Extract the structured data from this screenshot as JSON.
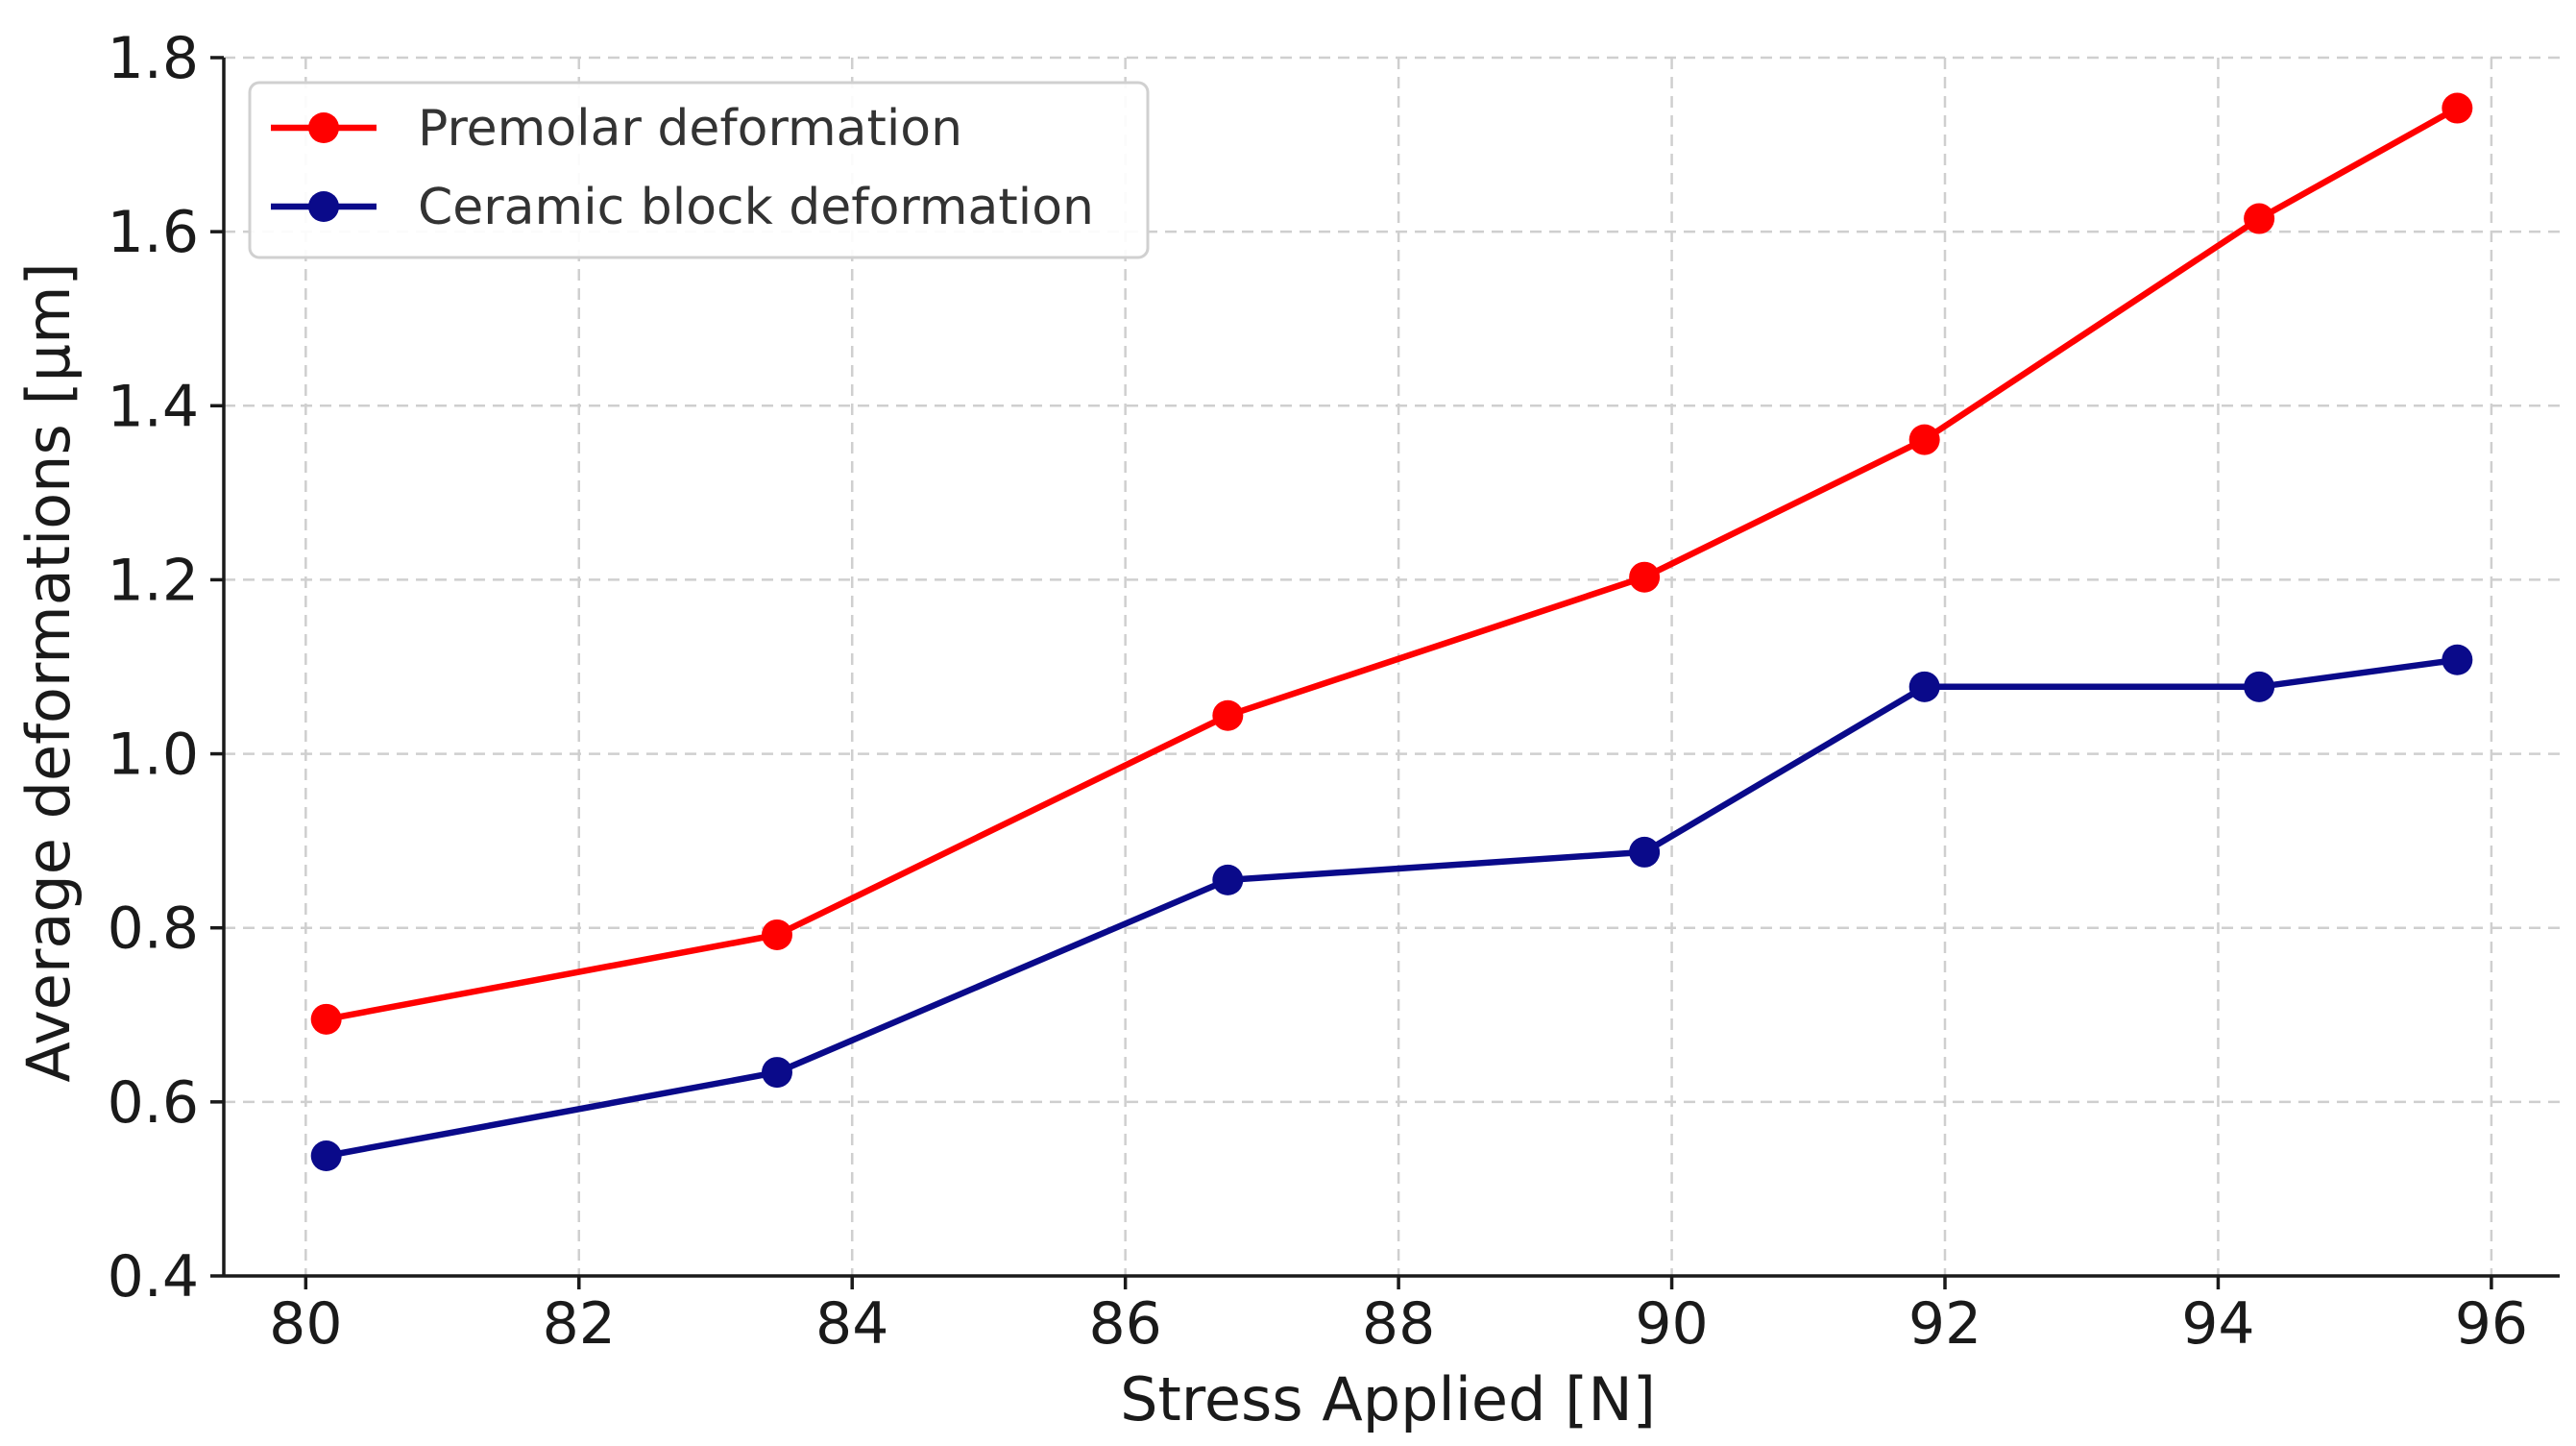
{
  "chart_data": {
    "type": "line",
    "title": "",
    "xlabel": "Stress Applied [N]",
    "ylabel": "Average deformations [µm]",
    "xlim": [
      79.4,
      96.5
    ],
    "ylim": [
      0.4,
      1.8
    ],
    "xticks": [
      80,
      82,
      84,
      86,
      88,
      90,
      92,
      94,
      96
    ],
    "xtick_labels": [
      "80",
      "82",
      "84",
      "86",
      "88",
      "90",
      "92",
      "94",
      "96"
    ],
    "yticks": [
      0.4,
      0.6,
      0.8,
      1.0,
      1.2,
      1.4,
      1.6,
      1.8
    ],
    "ytick_labels": [
      "0.4",
      "0.6",
      "0.8",
      "1.0",
      "1.2",
      "1.4",
      "1.6",
      "1.8"
    ],
    "grid": true,
    "legend_position": "top-left",
    "series": [
      {
        "name": "Premolar deformation",
        "color": "#ff0000",
        "x": [
          80.15,
          83.45,
          86.75,
          89.8,
          91.85,
          94.3,
          95.75
        ],
        "y": [
          0.695,
          0.792,
          1.044,
          1.203,
          1.361,
          1.615,
          1.742
        ]
      },
      {
        "name": "Ceramic block deformation",
        "color": "#0a0a8a",
        "x": [
          80.15,
          83.45,
          86.75,
          89.8,
          91.85,
          94.3,
          95.75
        ],
        "y": [
          0.538,
          0.634,
          0.855,
          0.887,
          1.077,
          1.077,
          1.108
        ]
      }
    ]
  }
}
